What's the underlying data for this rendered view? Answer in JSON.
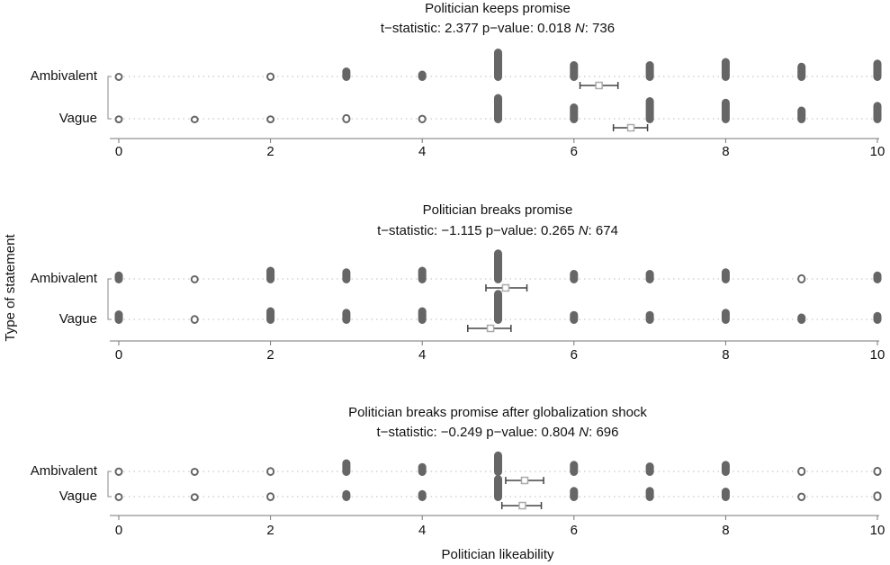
{
  "x_label": "Politician likeability",
  "y_label": "Type of statement",
  "chart_data": [
    {
      "type": "dotplot",
      "title": "Politician keeps promise",
      "subtitle_parts": [
        "t−statistic: 2.377 p−value: 0.018 ",
        "N",
        ": 736"
      ],
      "categories": [
        "Ambivalent",
        "Vague"
      ],
      "x": [
        0,
        1,
        2,
        3,
        4,
        5,
        6,
        7,
        8,
        9,
        10
      ],
      "counts": [
        [
          3,
          0,
          4,
          20,
          10,
          80,
          40,
          40,
          50,
          35,
          45
        ],
        [
          2,
          1,
          2,
          6,
          4,
          70,
          40,
          60,
          55,
          30,
          45
        ]
      ],
      "means": [
        6.33,
        6.75
      ],
      "ci": [
        [
          6.08,
          6.58
        ],
        [
          6.52,
          6.97
        ]
      ],
      "xlim": [
        0,
        10
      ],
      "xticks": [
        0,
        2,
        4,
        6,
        8,
        10
      ],
      "dot_color": "#666666",
      "mean_color": "#aaaaaa"
    },
    {
      "type": "dotplot",
      "title": "Politician breaks promise",
      "subtitle_parts": [
        "t−statistic: −1.115 p−value: 0.265 ",
        "N",
        ": 674"
      ],
      "categories": [
        "Ambivalent",
        "Vague"
      ],
      "x": [
        0,
        1,
        2,
        3,
        4,
        5,
        6,
        7,
        8,
        9,
        10
      ],
      "counts": [
        [
          15,
          3,
          30,
          25,
          30,
          85,
          20,
          20,
          25,
          6,
          15
        ],
        [
          20,
          5,
          30,
          25,
          30,
          85,
          18,
          18,
          25,
          10,
          15
        ]
      ],
      "means": [
        5.1,
        4.9
      ],
      "ci": [
        [
          4.84,
          5.38
        ],
        [
          4.6,
          5.17
        ]
      ],
      "xlim": [
        0,
        10
      ],
      "xticks": [
        0,
        2,
        4,
        6,
        8,
        10
      ],
      "dot_color": "#666666",
      "mean_color": "#aaaaaa"
    },
    {
      "type": "dotplot",
      "title": "Politician breaks promise after globalization shock",
      "subtitle_parts": [
        "t−statistic: −0.249 p−value: 0.804 ",
        "N",
        ": 696"
      ],
      "categories": [
        "Ambivalent",
        "Vague"
      ],
      "x": [
        0,
        1,
        2,
        3,
        4,
        5,
        6,
        7,
        8,
        9,
        10
      ],
      "counts": [
        [
          4,
          3,
          5,
          30,
          18,
          55,
          25,
          20,
          25,
          6,
          6
        ],
        [
          3,
          2,
          5,
          12,
          12,
          60,
          22,
          22,
          20,
          4,
          8
        ]
      ],
      "means": [
        5.35,
        5.32
      ],
      "ci": [
        [
          5.1,
          5.6
        ],
        [
          5.05,
          5.57
        ]
      ],
      "xlim": [
        0,
        10
      ],
      "xticks": [
        0,
        2,
        4,
        6,
        8,
        10
      ],
      "dot_color": "#666666",
      "mean_color": "#aaaaaa"
    }
  ]
}
